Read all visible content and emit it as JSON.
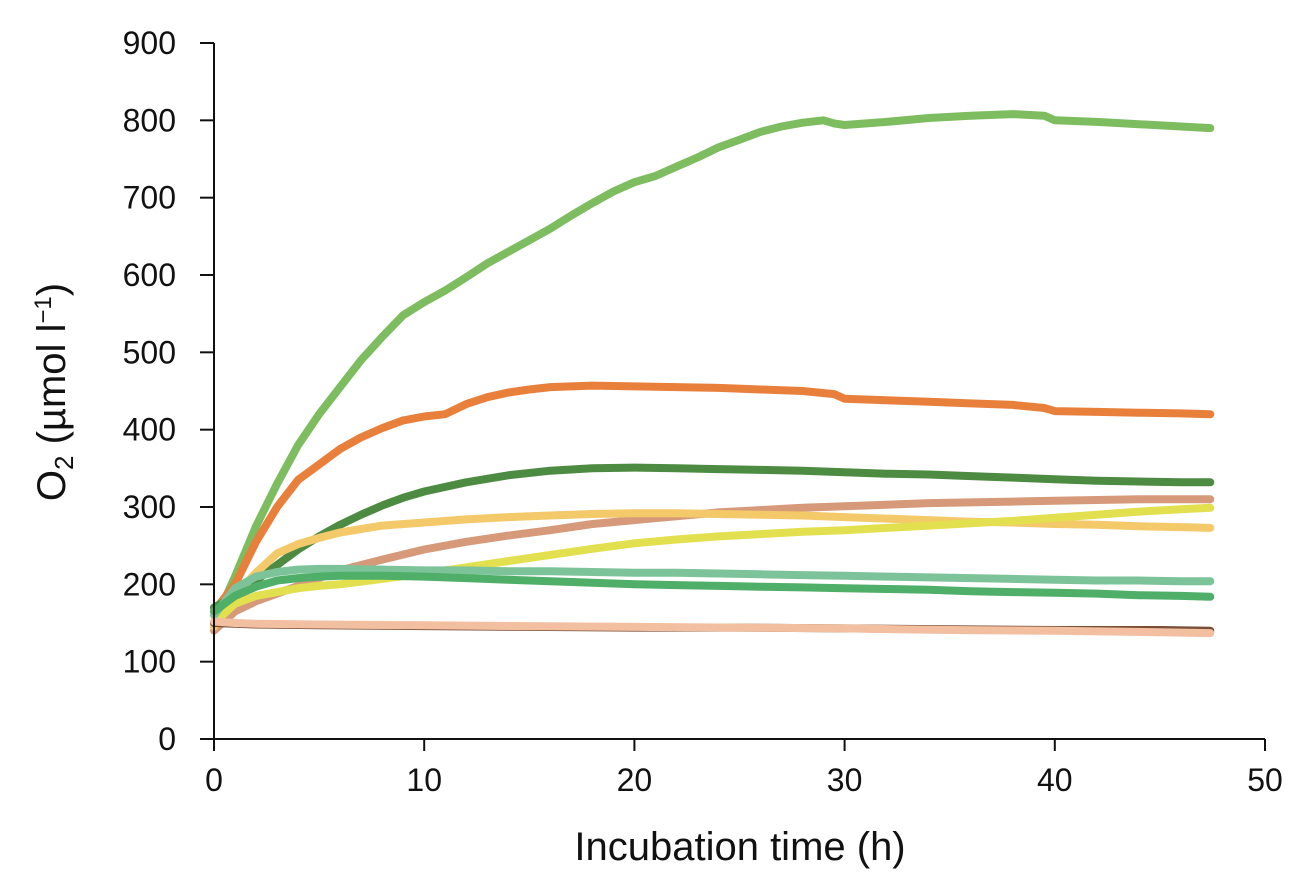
{
  "chart_data": {
    "type": "line",
    "xlabel": "Incubation time (h)",
    "ylabel": {
      "main": "O",
      "sub": "2",
      "unit": " (µmol l",
      "sup": "−1",
      "close": ")"
    },
    "xlim": [
      0,
      50
    ],
    "ylim": [
      0,
      900
    ],
    "xticks": [
      "0",
      "10",
      "20",
      "30",
      "40",
      "50"
    ],
    "yticks": [
      "0",
      "100",
      "200",
      "300",
      "400",
      "500",
      "600",
      "700",
      "800",
      "900"
    ],
    "grid": false,
    "legend": "none",
    "series": [
      {
        "color": "#7dbd5f",
        "x": [
          0,
          1,
          2,
          3,
          4,
          5,
          6,
          7,
          8,
          9,
          10,
          11,
          12,
          13,
          14,
          15,
          16,
          17,
          18,
          19,
          20,
          21,
          22,
          23,
          24,
          25,
          26,
          27,
          28,
          29,
          29.5,
          30,
          32,
          34,
          36,
          38,
          39.5,
          40,
          42,
          44,
          46,
          47.4
        ],
        "y": [
          150,
          210,
          275,
          330,
          380,
          420,
          455,
          490,
          520,
          548,
          565,
          580,
          597,
          615,
          630,
          645,
          660,
          677,
          693,
          708,
          720,
          728,
          740,
          752,
          765,
          775,
          785,
          792,
          797,
          800,
          796,
          794,
          798,
          803,
          806,
          808,
          806,
          800,
          798,
          795,
          792,
          790
        ]
      },
      {
        "color": "#e8803c",
        "x": [
          0,
          1,
          2,
          3,
          4,
          5,
          6,
          7,
          8,
          9,
          10,
          11,
          12,
          13,
          14,
          15,
          16,
          17,
          18,
          20,
          22,
          24,
          26,
          28,
          29.5,
          30,
          32,
          34,
          36,
          38,
          39.5,
          40,
          42,
          44,
          46,
          47.4
        ],
        "y": [
          165,
          200,
          255,
          300,
          335,
          355,
          375,
          390,
          402,
          412,
          417,
          420,
          433,
          442,
          448,
          452,
          455,
          456,
          457,
          456,
          455,
          454,
          452,
          450,
          446,
          440,
          438,
          436,
          434,
          432,
          428,
          424,
          423,
          422,
          421,
          420
        ]
      },
      {
        "color": "#4e8b42",
        "x": [
          0,
          1,
          2,
          3,
          4,
          5,
          6,
          7,
          8,
          9,
          10,
          12,
          14,
          16,
          18,
          20,
          22,
          24,
          26,
          28,
          30,
          32,
          34,
          36,
          38,
          40,
          42,
          44,
          46,
          47.4
        ],
        "y": [
          170,
          185,
          205,
          225,
          245,
          262,
          277,
          290,
          302,
          312,
          320,
          332,
          341,
          347,
          350,
          351,
          350,
          349,
          348,
          347,
          345,
          343,
          342,
          340,
          338,
          336,
          334,
          333,
          332,
          332
        ]
      },
      {
        "color": "#d69a7a",
        "x": [
          0,
          1,
          2,
          3,
          4,
          5,
          6,
          8,
          10,
          12,
          14,
          16,
          18,
          20,
          22,
          24,
          26,
          28,
          30,
          32,
          34,
          36,
          38,
          40,
          42,
          44,
          46,
          47.4
        ],
        "y": [
          140,
          165,
          178,
          188,
          198,
          208,
          218,
          232,
          245,
          255,
          263,
          270,
          278,
          283,
          288,
          293,
          296,
          299,
          301,
          303,
          305,
          306,
          307,
          308,
          309,
          310,
          310,
          310
        ]
      },
      {
        "color": "#f3c969",
        "x": [
          0,
          1,
          2,
          3,
          4,
          5,
          6,
          8,
          10,
          12,
          14,
          16,
          18,
          20,
          22,
          24,
          26,
          28,
          30,
          32,
          34,
          36,
          38,
          40,
          42,
          44,
          46,
          47.4
        ],
        "y": [
          145,
          185,
          215,
          240,
          252,
          260,
          267,
          276,
          280,
          284,
          287,
          289,
          291,
          292,
          292,
          291,
          290,
          289,
          287,
          285,
          283,
          281,
          280,
          278,
          277,
          275,
          274,
          273
        ]
      },
      {
        "color": "#e3e04f",
        "x": [
          0,
          1,
          2,
          3,
          4,
          5,
          6,
          8,
          10,
          12,
          14,
          16,
          18,
          20,
          22,
          24,
          26,
          28,
          30,
          32,
          34,
          36,
          38,
          40,
          42,
          44,
          46,
          47.4
        ],
        "y": [
          150,
          175,
          185,
          190,
          195,
          198,
          200,
          207,
          214,
          222,
          230,
          238,
          246,
          253,
          258,
          262,
          265,
          268,
          270,
          273,
          276,
          279,
          282,
          286,
          290,
          294,
          297,
          299
        ]
      },
      {
        "color": "#7cc39a",
        "x": [
          0,
          1,
          2,
          3,
          4,
          5,
          6,
          8,
          10,
          12,
          14,
          16,
          18,
          20,
          22,
          24,
          26,
          28,
          30,
          32,
          34,
          36,
          38,
          40,
          42,
          44,
          46,
          47.4
        ],
        "y": [
          160,
          195,
          210,
          216,
          219,
          220,
          220,
          219,
          218,
          218,
          217,
          217,
          216,
          215,
          215,
          214,
          213,
          212,
          211,
          210,
          209,
          208,
          207,
          206,
          205,
          205,
          204,
          204
        ]
      },
      {
        "color": "#4fae68",
        "x": [
          0,
          1,
          2,
          3,
          4,
          5,
          6,
          8,
          10,
          12,
          14,
          16,
          18,
          20,
          22,
          24,
          26,
          28,
          30,
          32,
          34,
          36,
          38,
          40,
          42,
          44,
          46,
          47.4
        ],
        "y": [
          165,
          185,
          197,
          205,
          208,
          210,
          211,
          211,
          210,
          208,
          206,
          204,
          202,
          200,
          199,
          198,
          197,
          196,
          195,
          194,
          193,
          191,
          190,
          189,
          188,
          186,
          185,
          184
        ]
      },
      {
        "color": "#7a4e35",
        "x": [
          0,
          1,
          2,
          5,
          10,
          15,
          20,
          25,
          30,
          35,
          40,
          45,
          47.4
        ],
        "y": [
          150,
          149,
          148,
          147,
          146,
          145,
          144,
          144,
          143,
          142,
          141,
          141,
          140
        ]
      },
      {
        "color": "#f2bfa0",
        "x": [
          0,
          1,
          2,
          5,
          10,
          15,
          20,
          25,
          30,
          35,
          40,
          45,
          47.4
        ],
        "y": [
          152,
          150,
          149,
          148,
          147,
          146,
          145,
          144,
          143,
          141,
          140,
          138,
          137
        ]
      }
    ]
  }
}
